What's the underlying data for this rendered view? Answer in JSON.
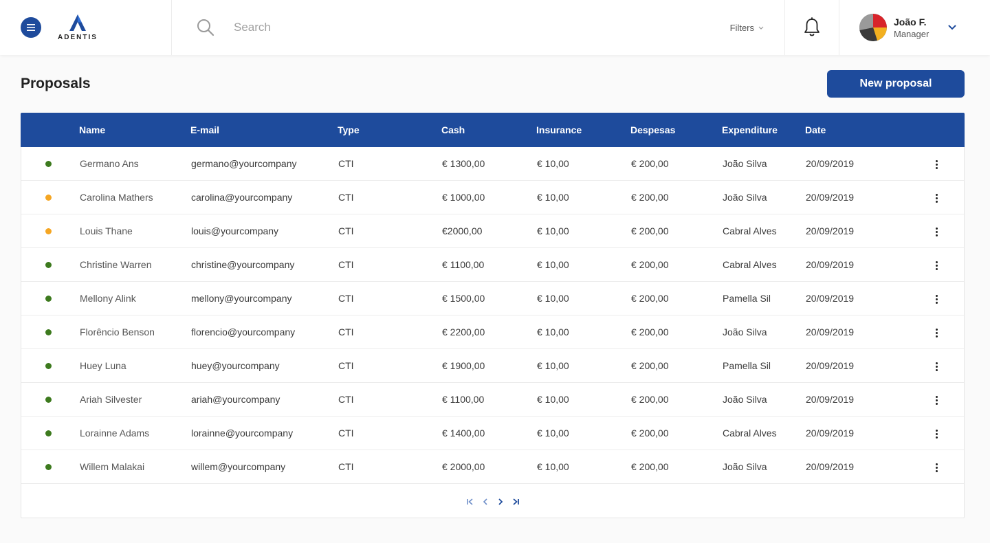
{
  "brand": {
    "logo_text": "ADENTIS"
  },
  "search": {
    "placeholder": "Search"
  },
  "filters": {
    "label": "Filters"
  },
  "user": {
    "name": "João F.",
    "role": "Manager"
  },
  "page": {
    "title": "Proposals",
    "new_button": "New proposal"
  },
  "colors": {
    "accent": "#1e4b9c",
    "status_green": "#3d7a1e",
    "status_orange": "#f5a623"
  },
  "table": {
    "headers": {
      "name": "Name",
      "email": "E-mail",
      "type": "Type",
      "cash": "Cash",
      "insurance": "Insurance",
      "despesas": "Despesas",
      "expenditure": "Expenditure",
      "date": "Date"
    },
    "rows": [
      {
        "status": "green",
        "name": "Germano Ans",
        "email": "germano@yourcompany",
        "type": "CTI",
        "cash": "€ 1300,00",
        "insurance": "€ 10,00",
        "despesas": "€ 200,00",
        "expenditure": "João Silva",
        "date": "20/09/2019"
      },
      {
        "status": "orange",
        "name": "Carolina Mathers",
        "email": "carolina@yourcompany",
        "type": "CTI",
        "cash": "€ 1000,00",
        "insurance": "€ 10,00",
        "despesas": "€ 200,00",
        "expenditure": "João Silva",
        "date": "20/09/2019"
      },
      {
        "status": "orange",
        "name": "Louis Thane",
        "email": "louis@yourcompany",
        "type": "CTI",
        "cash": "€2000,00",
        "insurance": "€ 10,00",
        "despesas": "€ 200,00",
        "expenditure": "Cabral Alves",
        "date": "20/09/2019"
      },
      {
        "status": "green",
        "name": "Christine Warren",
        "email": "christine@yourcompany",
        "type": "CTI",
        "cash": "€ 1100,00",
        "insurance": "€ 10,00",
        "despesas": "€ 200,00",
        "expenditure": "Cabral Alves",
        "date": "20/09/2019"
      },
      {
        "status": "green",
        "name": "Mellony Alink",
        "email": "mellony@yourcompany",
        "type": "CTI",
        "cash": "€ 1500,00",
        "insurance": "€ 10,00",
        "despesas": "€ 200,00",
        "expenditure": "Pamella Sil",
        "date": "20/09/2019"
      },
      {
        "status": "green",
        "name": "Florêncio Benson",
        "email": "florencio@yourcompany",
        "type": "CTI",
        "cash": "€ 2200,00",
        "insurance": "€ 10,00",
        "despesas": "€ 200,00",
        "expenditure": "João Silva",
        "date": "20/09/2019"
      },
      {
        "status": "green",
        "name": "Huey Luna",
        "email": "huey@yourcompany",
        "type": "CTI",
        "cash": "€ 1900,00",
        "insurance": "€ 10,00",
        "despesas": "€ 200,00",
        "expenditure": "Pamella Sil",
        "date": "20/09/2019"
      },
      {
        "status": "green",
        "name": "Ariah Silvester",
        "email": "ariah@yourcompany",
        "type": "CTI",
        "cash": "€ 1100,00",
        "insurance": "€ 10,00",
        "despesas": "€ 200,00",
        "expenditure": "João Silva",
        "date": "20/09/2019"
      },
      {
        "status": "green",
        "name": "Lorainne Adams",
        "email": "lorainne@yourcompany",
        "type": "CTI",
        "cash": "€ 1400,00",
        "insurance": "€ 10,00",
        "despesas": "€ 200,00",
        "expenditure": "Cabral Alves",
        "date": "20/09/2019"
      },
      {
        "status": "green",
        "name": "Willem Malakai",
        "email": "willem@yourcompany",
        "type": "CTI",
        "cash": "€ 2000,00",
        "insurance": "€ 10,00",
        "despesas": "€ 200,00",
        "expenditure": "João Silva",
        "date": "20/09/2019"
      }
    ]
  },
  "pagination": {
    "icons": [
      "first-page-icon",
      "prev-page-icon",
      "next-page-icon",
      "last-page-icon"
    ]
  }
}
